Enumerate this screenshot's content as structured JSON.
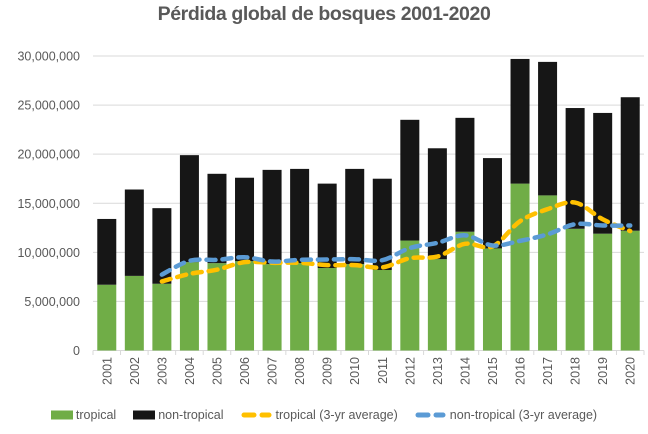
{
  "chart_data": {
    "type": "bar",
    "stacked": true,
    "title": "Pérdida global de bosques 2001-2020",
    "xlabel": "",
    "ylabel": "",
    "ylim": [
      0,
      30000000
    ],
    "ytick_step": 5000000,
    "ytick_labels": [
      "0",
      "5,000,000",
      "10,000,000",
      "15,000,000",
      "20,000,000",
      "25,000,000",
      "30,000,000"
    ],
    "grid": "horizontal",
    "legend_position": "bottom",
    "categories": [
      "2001",
      "2002",
      "2003",
      "2004",
      "2005",
      "2006",
      "2007",
      "2008",
      "2009",
      "2010",
      "2011",
      "2012",
      "2013",
      "2014",
      "2015",
      "2016",
      "2017",
      "2018",
      "2019",
      "2020"
    ],
    "series": [
      {
        "name": "tropical",
        "kind": "bar",
        "color": "#70AD47",
        "values": [
          6700000,
          7600000,
          6800000,
          9000000,
          8900000,
          9100000,
          8800000,
          8900000,
          8400000,
          8800000,
          8200000,
          11200000,
          9300000,
          12100000,
          10400000,
          17000000,
          15800000,
          12400000,
          11900000,
          12200000
        ]
      },
      {
        "name": "non-tropical",
        "kind": "bar",
        "color": "#161616",
        "values": [
          6700000,
          8800000,
          7700000,
          10900000,
          9100000,
          8500000,
          9600000,
          9600000,
          8600000,
          9700000,
          9300000,
          12300000,
          11300000,
          11600000,
          9200000,
          12700000,
          13600000,
          12300000,
          12300000,
          13600000
        ]
      },
      {
        "name": "tropical (3-yr average)",
        "kind": "line",
        "dashed": true,
        "color": "#FFC000",
        "values": [
          null,
          null,
          7033333,
          7800000,
          8233333,
          9000000,
          8933333,
          8933333,
          8700000,
          8700000,
          8466667,
          9400000,
          9566667,
          10866667,
          10600000,
          13166667,
          14400000,
          15066667,
          13366667,
          12166667
        ]
      },
      {
        "name": "non-tropical  (3-yr average)",
        "kind": "line",
        "dashed": true,
        "color": "#5B9BD5",
        "values": [
          null,
          null,
          7733333,
          9133333,
          9233333,
          9500000,
          9066667,
          9233333,
          9266667,
          9300000,
          9200000,
          10433333,
          10966667,
          11733333,
          10700000,
          11166667,
          11833333,
          12866667,
          12733333,
          12733333
        ]
      }
    ],
    "colors": {
      "gridline": "#D9D9D9",
      "axis_text": "#595959",
      "title_text": "#595959",
      "background": "#FFFFFF"
    }
  }
}
